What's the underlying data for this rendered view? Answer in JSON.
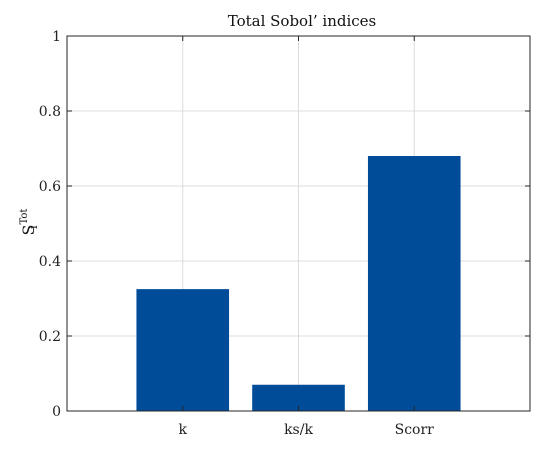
{
  "chart_data": {
    "type": "bar",
    "title": "Total Sobol’ indices",
    "ylabel": {
      "base": "S",
      "sub": "i",
      "sup": "Tot"
    },
    "xlabel": "",
    "categories": [
      "k",
      "ks/k",
      "Scorr"
    ],
    "values": [
      0.325,
      0.07,
      0.68
    ],
    "ylim": [
      0,
      1
    ],
    "yticks": [
      0,
      0.2,
      0.4,
      0.6,
      0.8,
      1
    ],
    "ytick_labels": [
      "0",
      "0.2",
      "0.4",
      "0.6",
      "0.8",
      "1"
    ],
    "grid": true,
    "bar_color": "#004c99"
  }
}
